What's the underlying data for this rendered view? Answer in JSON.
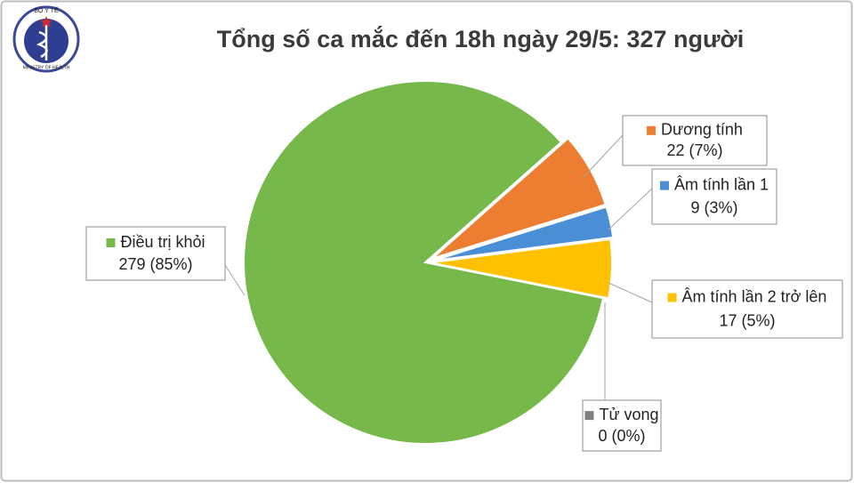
{
  "logo": {
    "top": "BỘ Y TẾ",
    "bottom": "MINISTRY OF HEALTH"
  },
  "chart_data": {
    "type": "pie",
    "title": "Tổng số ca mắc đến 18h ngày 29/5: 327 người",
    "categories": [
      "Dương tính",
      "Âm tính lần 1",
      "Âm tính lần 2 trở lên",
      "Tử vong",
      "Điều trị khỏi"
    ],
    "values": [
      22,
      9,
      17,
      0,
      279
    ],
    "value_labels": [
      "22 (7%)",
      "9 (3%)",
      "17 (5%)",
      "0 (0%)",
      "279 (85%)"
    ],
    "colors": [
      "#ed7d31",
      "#4a8fd6",
      "#ffc000",
      "#7f7f7f",
      "#76b84a"
    ]
  }
}
